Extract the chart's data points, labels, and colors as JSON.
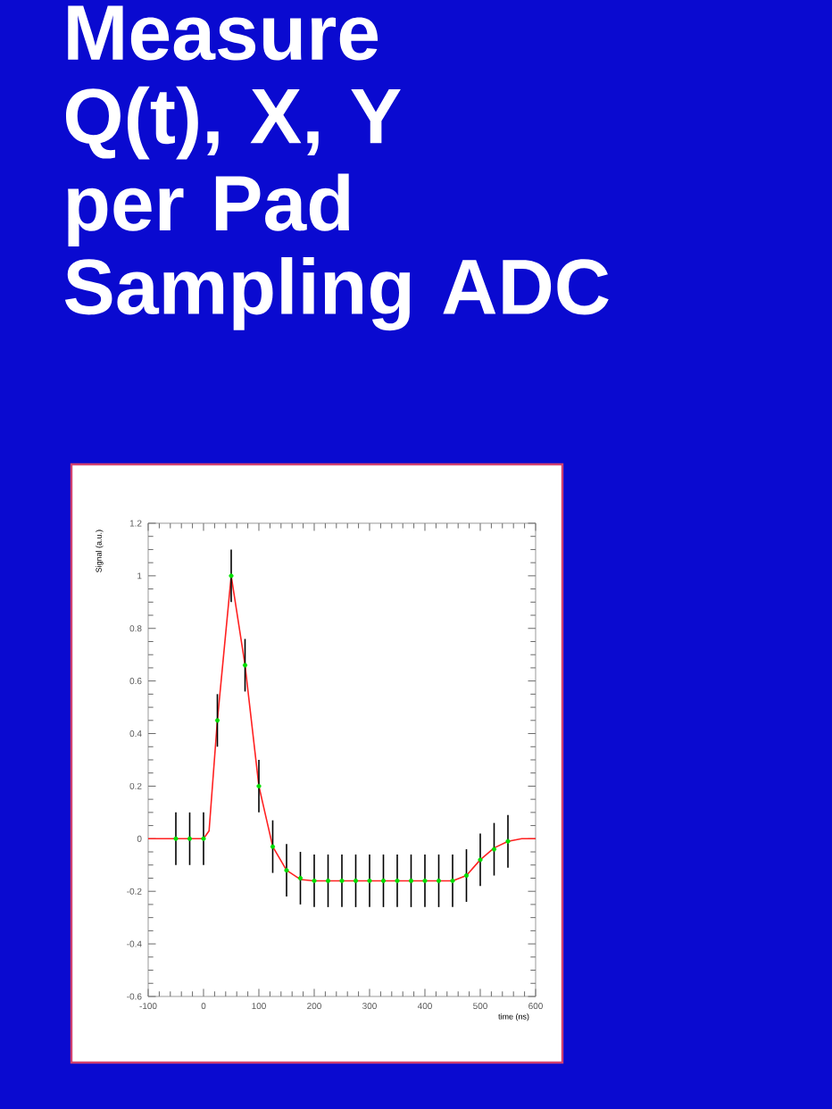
{
  "chart_data": {
    "type": "scatter",
    "title": "Measure Q(t), X, Y",
    "subtitle": "per Pad Sampling ADC",
    "xlabel": "time (ns)",
    "ylabel": "Signal (a.u.)",
    "xlim": [
      -100,
      600
    ],
    "ylim": [
      -0.6,
      1.2
    ],
    "xticks": [
      -100,
      0,
      100,
      200,
      300,
      400,
      500,
      600
    ],
    "yticks": [
      -0.6,
      -0.4,
      -0.2,
      0,
      0.2,
      0.4,
      0.6,
      0.8,
      1,
      1.2
    ],
    "grid": false,
    "series": [
      {
        "type": "line",
        "color": "#ff2020",
        "marker": "none",
        "x": [
          -100,
          0,
          10,
          25,
          50,
          75,
          100,
          125,
          150,
          175,
          200,
          450,
          475,
          500,
          525,
          550,
          575,
          600
        ],
        "values": [
          0,
          0,
          0.03,
          0.45,
          1.0,
          0.66,
          0.2,
          -0.03,
          -0.12,
          -0.155,
          -0.16,
          -0.16,
          -0.14,
          -0.08,
          -0.035,
          -0.01,
          0,
          0
        ]
      },
      {
        "color": "#00e000",
        "marker": "circle",
        "x": [
          -50,
          -25,
          0,
          25,
          50,
          75,
          100,
          125,
          150,
          175,
          200,
          225,
          250,
          275,
          300,
          325,
          350,
          375,
          400,
          425,
          450,
          475,
          500,
          525,
          550
        ],
        "values": [
          0,
          0,
          0,
          0.45,
          1.0,
          0.66,
          0.2,
          -0.03,
          -0.12,
          -0.15,
          -0.16,
          -0.16,
          -0.16,
          -0.16,
          -0.16,
          -0.16,
          -0.16,
          -0.16,
          -0.16,
          -0.16,
          -0.16,
          -0.14,
          -0.08,
          -0.04,
          -0.01
        ],
        "errors": [
          0.1,
          0.1,
          0.1,
          0.1,
          0.1,
          0.1,
          0.1,
          0.1,
          0.1,
          0.1,
          0.1,
          0.1,
          0.1,
          0.1,
          0.1,
          0.1,
          0.1,
          0.1,
          0.1,
          0.1,
          0.1,
          0.1,
          0.1,
          0.1,
          0.1
        ]
      }
    ]
  }
}
